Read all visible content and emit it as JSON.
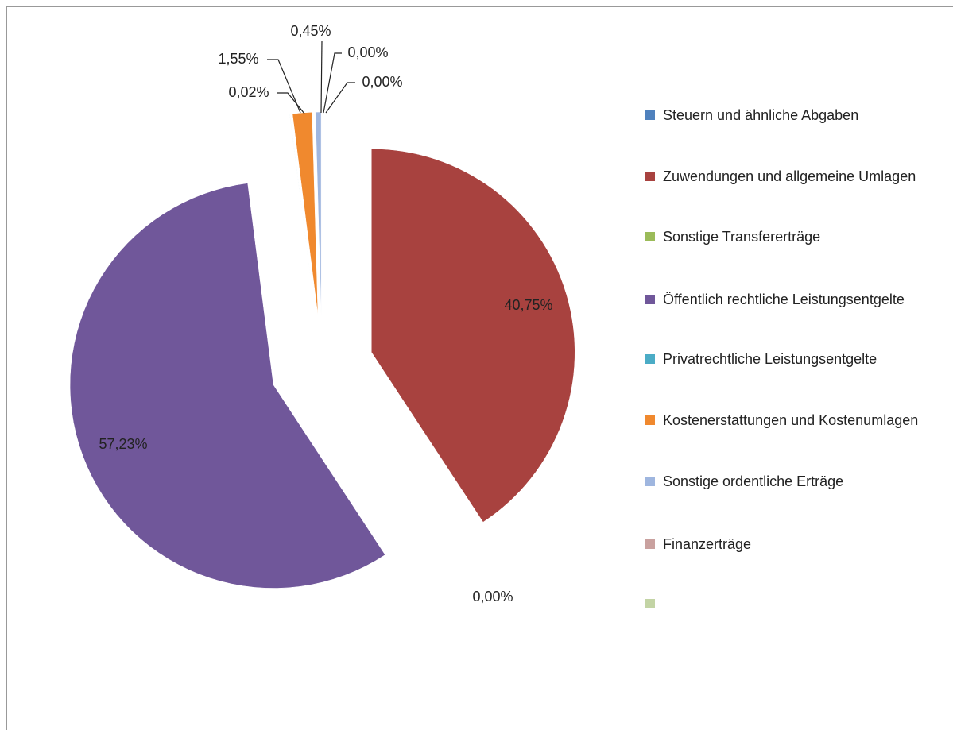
{
  "chart_data": {
    "type": "pie",
    "categories": [
      "Steuern und ähnliche Abgaben",
      "Zuwendungen und allgemeine Umlagen",
      "Sonstige Transfererträge",
      "Öffentlich rechtliche Leistungsentgelte",
      "Privatrechtliche Leistungsentgelte",
      "Kostenerstattungen und Kostenumlagen",
      "Sonstige ordentliche Erträge",
      "Finanzerträge",
      null
    ],
    "values": [
      0.0,
      40.75,
      0.0,
      57.23,
      0.02,
      1.55,
      0.45,
      0.0,
      0.0
    ],
    "value_labels": [
      null,
      "40,75%",
      "0,00%",
      "57,23%",
      "0,02%",
      "1,55%",
      "0,45%",
      "0,00%",
      "0,00%"
    ],
    "colors": [
      "#4f81bd",
      "#a8423f",
      "#9bbb59",
      "#70579a",
      "#4bacc6",
      "#f0892e",
      "#9fb6df",
      "#c9a19f",
      "#c3d4a5"
    ],
    "legend": "right"
  }
}
